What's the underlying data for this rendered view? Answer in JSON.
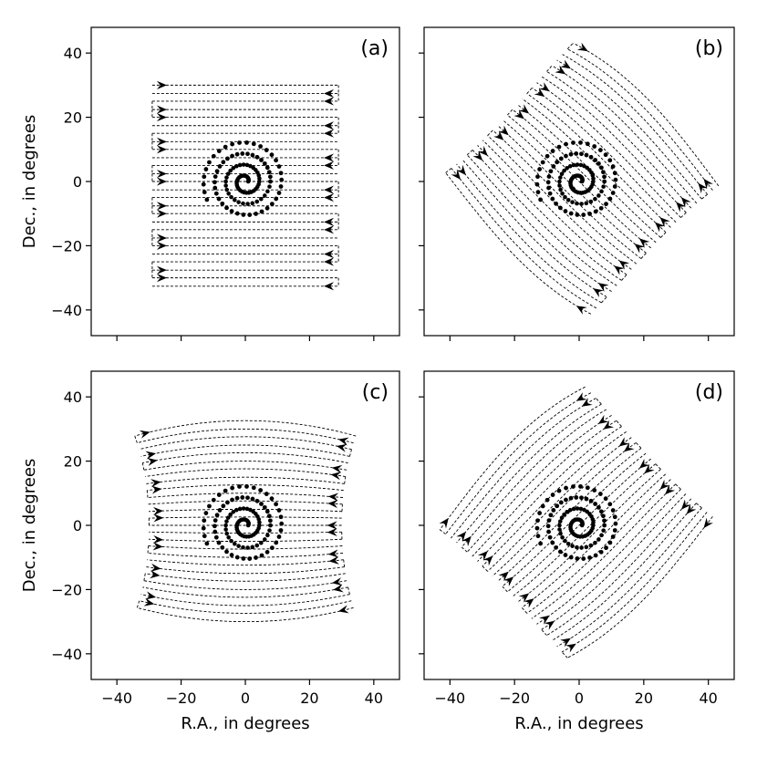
{
  "figure": {
    "xlabel": "R.A., in degrees",
    "ylabel": "Dec., in degrees",
    "xticks": [
      -40,
      -20,
      0,
      20,
      40
    ],
    "yticks": [
      -40,
      -20,
      0,
      20,
      40
    ],
    "xlim": [
      -48,
      48
    ],
    "ylim": [
      -48,
      48
    ]
  },
  "chart_data": [
    {
      "type": "scatter",
      "panel": "(a)",
      "scan_pattern": "raster",
      "scan_direction": "constant-Dec rows, alternating R.A. direction",
      "scan_rows": 13,
      "scan_extent_ra": [
        -29,
        29
      ],
      "scan_extent_dec": [
        -30,
        30
      ],
      "rotation_deg": 0,
      "sources": "spiral of point sources centred on (0, 0), radius to ~15 deg"
    },
    {
      "type": "scatter",
      "panel": "(b)",
      "scan_pattern": "great-circle arcs",
      "scan_rows": 13,
      "rotation_deg": 45,
      "sources": "spiral of point sources centred on (0, 0), radius to ~15 deg"
    },
    {
      "type": "scatter",
      "panel": "(c)",
      "scan_pattern": "great-circle arcs",
      "scan_rows": 13,
      "rotation_deg": 90,
      "sources": "spiral of point sources centred on (0, 0), radius to ~15 deg"
    },
    {
      "type": "scatter",
      "panel": "(d)",
      "scan_pattern": "great-circle arcs",
      "scan_rows": 13,
      "rotation_deg": 135,
      "sources": "spiral of point sources centred on (0, 0), radius to ~15 deg"
    }
  ]
}
